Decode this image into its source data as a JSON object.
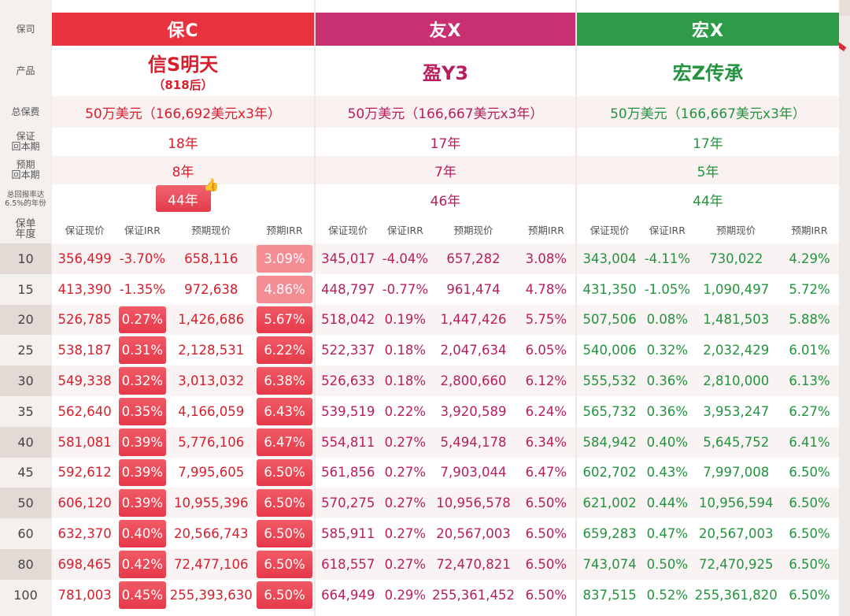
{
  "labels": {
    "company": "保司",
    "product": "产品",
    "premium": "总保费",
    "guaranteed_breakeven": [
      "保证",
      "回本期"
    ],
    "expected_breakeven": [
      "预期",
      "回本期"
    ],
    "irr_year": [
      "总回报率达",
      "6.5%的年份"
    ],
    "policy_year": [
      "保单",
      "年度"
    ]
  },
  "years": [
    "10",
    "15",
    "20",
    "25",
    "30",
    "35",
    "40",
    "45",
    "50",
    "60",
    "80",
    "100"
  ],
  "col_headers": [
    "保证现价",
    "保证IRR",
    "预期现价",
    "预期IRR"
  ],
  "companies": [
    {
      "name": "保C",
      "header_color": "#e8323f",
      "text_color": "#d81e2c",
      "product": "信S明天",
      "product_sub": "（818后）",
      "premium": "50万美元（166,692美元x3年）",
      "guaranteed_breakeven": "18年",
      "expected_breakeven": "8年",
      "irr_year": "44年",
      "thumb_icon": "thumbs-up-icon",
      "rows": [
        [
          "356,499",
          "-3.70%",
          "658,116",
          "3.09%"
        ],
        [
          "413,390",
          "-1.35%",
          "972,638",
          "4.86%"
        ],
        [
          "526,785",
          "0.27%",
          "1,426,686",
          "5.67%"
        ],
        [
          "538,187",
          "0.31%",
          "2,128,531",
          "6.22%"
        ],
        [
          "549,338",
          "0.32%",
          "3,013,032",
          "6.38%"
        ],
        [
          "562,640",
          "0.35%",
          "4,166,059",
          "6.43%"
        ],
        [
          "581,081",
          "0.39%",
          "5,776,106",
          "6.47%"
        ],
        [
          "592,612",
          "0.39%",
          "7,995,605",
          "6.50%"
        ],
        [
          "606,120",
          "0.39%",
          "10,955,396",
          "6.50%"
        ],
        [
          "632,370",
          "0.40%",
          "20,566,743",
          "6.50%"
        ],
        [
          "698,465",
          "0.42%",
          "72,477,106",
          "6.50%"
        ],
        [
          "781,003",
          "0.45%",
          "255,393,630",
          "6.50%"
        ]
      ]
    },
    {
      "name": "友X",
      "header_color": "#c83072",
      "text_color": "#b81e5e",
      "product": "盈Y3",
      "product_sub": "",
      "premium": "50万美元（166,667美元x3年）",
      "guaranteed_breakeven": "17年",
      "expected_breakeven": "7年",
      "irr_year": "46年",
      "rows": [
        [
          "345,017",
          "-4.04%",
          "657,282",
          "3.08%"
        ],
        [
          "448,797",
          "-0.77%",
          "961,474",
          "4.78%"
        ],
        [
          "518,042",
          "0.19%",
          "1,447,426",
          "5.75%"
        ],
        [
          "522,337",
          "0.18%",
          "2,047,634",
          "6.05%"
        ],
        [
          "526,633",
          "0.18%",
          "2,800,660",
          "6.12%"
        ],
        [
          "539,519",
          "0.22%",
          "3,920,589",
          "6.24%"
        ],
        [
          "554,811",
          "0.27%",
          "5,494,178",
          "6.34%"
        ],
        [
          "561,856",
          "0.27%",
          "7,903,044",
          "6.47%"
        ],
        [
          "570,275",
          "0.27%",
          "10,956,578",
          "6.50%"
        ],
        [
          "585,911",
          "0.27%",
          "20,567,003",
          "6.50%"
        ],
        [
          "618,557",
          "0.27%",
          "72,470,821",
          "6.50%"
        ],
        [
          "664,949",
          "0.29%",
          "255,361,452",
          "6.50%"
        ]
      ]
    },
    {
      "name": "宏X",
      "header_color": "#2e9b48",
      "text_color": "#23933f",
      "product": "宏Z传承",
      "product_sub": "",
      "premium": "50万美元（166,667美元x3年）",
      "guaranteed_breakeven": "17年",
      "expected_breakeven": "5年",
      "irr_year": "44年",
      "rows": [
        [
          "343,004",
          "-4.11%",
          "730,022",
          "4.29%"
        ],
        [
          "431,350",
          "-1.05%",
          "1,090,497",
          "5.72%"
        ],
        [
          "507,506",
          "0.08%",
          "1,481,503",
          "5.88%"
        ],
        [
          "540,006",
          "0.32%",
          "2,032,429",
          "6.01%"
        ],
        [
          "555,532",
          "0.36%",
          "2,810,000",
          "6.13%"
        ],
        [
          "565,732",
          "0.36%",
          "3,953,247",
          "6.27%"
        ],
        [
          "584,942",
          "0.40%",
          "5,645,752",
          "6.41%"
        ],
        [
          "602,702",
          "0.43%",
          "7,997,008",
          "6.50%"
        ],
        [
          "621,002",
          "0.44%",
          "10,956,594",
          "6.50%"
        ],
        [
          "659,283",
          "0.47%",
          "20,567,003",
          "6.50%"
        ],
        [
          "743,074",
          "0.50%",
          "72,470,925",
          "6.50%"
        ],
        [
          "837,515",
          "0.52%",
          "255,361,820",
          "6.50%"
        ]
      ]
    }
  ]
}
